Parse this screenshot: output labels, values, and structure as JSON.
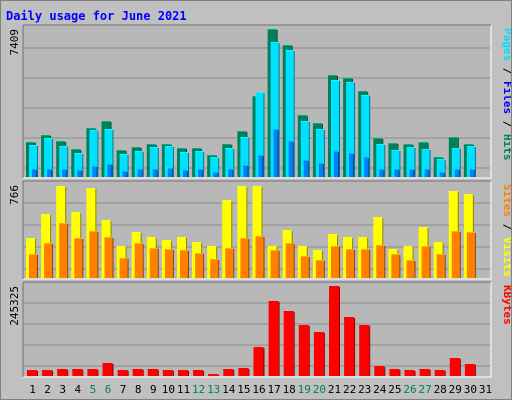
{
  "title": "Daily usage for June 2021",
  "colors": {
    "background": "#c0c0c0",
    "panel": "#b8b8b8",
    "hits": "#00805c",
    "files": "#00e0ff",
    "pages": "#0080ff",
    "visits": "#ffff00",
    "sites": "#ff8000",
    "kbytes": "#ff0000",
    "day_weekday": "#000000",
    "day_weekend": "#00805c"
  },
  "chart_data": [
    {
      "type": "bar",
      "panel": "hits-files-pages",
      "max_label": "7409",
      "legend": [
        {
          "text": "Pages",
          "color": "#00e0ff"
        },
        {
          "text": "Files",
          "color": "#0000ff"
        },
        {
          "text": "Hits",
          "color": "#00805c"
        }
      ],
      "ylim": [
        0,
        7409
      ],
      "categories": [
        "1",
        "2",
        "3",
        "4",
        "5",
        "6",
        "7",
        "8",
        "9",
        "10",
        "11",
        "12",
        "13",
        "14",
        "15",
        "16",
        "17",
        "18",
        "19",
        "20",
        "21",
        "22",
        "23",
        "24",
        "25",
        "26",
        "27",
        "28",
        "29",
        "30",
        "31"
      ],
      "series": [
        {
          "name": "Hits",
          "values": [
            1750,
            2100,
            1800,
            1400,
            2450,
            2800,
            1350,
            1500,
            1650,
            1650,
            1450,
            1450,
            1100,
            1650,
            2300,
            4050,
            7400,
            6600,
            3100,
            2700,
            5100,
            4950,
            4300,
            1950,
            1700,
            1650,
            1750,
            1000,
            2000,
            1650,
            0
          ]
        },
        {
          "name": "Files",
          "values": [
            1600,
            1950,
            1550,
            1200,
            2350,
            2400,
            1150,
            1300,
            1500,
            1550,
            1250,
            1300,
            1000,
            1450,
            2000,
            4250,
            6750,
            6350,
            2800,
            2400,
            4850,
            4750,
            4100,
            1650,
            1350,
            1500,
            1400,
            900,
            1450,
            1550,
            0
          ]
        },
        {
          "name": "Pages",
          "values": [
            380,
            420,
            380,
            330,
            560,
            650,
            320,
            380,
            420,
            430,
            360,
            380,
            260,
            420,
            620,
            1100,
            2400,
            1800,
            850,
            700,
            1300,
            1200,
            1000,
            420,
            380,
            420,
            400,
            260,
            420,
            420,
            0
          ]
        }
      ]
    },
    {
      "type": "bar",
      "panel": "visits-sites",
      "max_label": "766",
      "legend": [
        {
          "text": "Sites",
          "color": "#ff8000"
        },
        {
          "text": "Visits",
          "color": "#ffff00"
        }
      ],
      "ylim": [
        0,
        766
      ],
      "categories": [
        "1",
        "2",
        "3",
        "4",
        "5",
        "6",
        "7",
        "8",
        "9",
        "10",
        "11",
        "12",
        "13",
        "14",
        "15",
        "16",
        "17",
        "18",
        "19",
        "20",
        "21",
        "22",
        "23",
        "24",
        "25",
        "26",
        "27",
        "28",
        "29",
        "30",
        "31"
      ],
      "series": [
        {
          "name": "Visits",
          "values": [
            330,
            530,
            760,
            540,
            745,
            480,
            260,
            380,
            340,
            310,
            340,
            300,
            260,
            640,
            760,
            760,
            260,
            395,
            265,
            230,
            360,
            340,
            340,
            500,
            235,
            260,
            420,
            300,
            720,
            690,
            0
          ]
        },
        {
          "name": "Sites",
          "values": [
            200,
            285,
            455,
            330,
            390,
            335,
            165,
            285,
            250,
            240,
            230,
            210,
            155,
            245,
            330,
            345,
            230,
            290,
            180,
            150,
            260,
            240,
            240,
            275,
            195,
            150,
            260,
            195,
            385,
            375,
            0
          ]
        }
      ]
    },
    {
      "type": "bar",
      "panel": "kbytes",
      "max_label": "245325",
      "legend": [
        {
          "text": "KBytes",
          "color": "#ff0000"
        }
      ],
      "ylim": [
        0,
        245325
      ],
      "categories": [
        "1",
        "2",
        "3",
        "4",
        "5",
        "6",
        "7",
        "8",
        "9",
        "10",
        "11",
        "12",
        "13",
        "14",
        "15",
        "16",
        "17",
        "18",
        "19",
        "20",
        "21",
        "22",
        "23",
        "24",
        "25",
        "26",
        "27",
        "28",
        "29",
        "30",
        "31"
      ],
      "series": [
        {
          "name": "KBytes",
          "values": [
            16500,
            16500,
            20000,
            18500,
            19000,
            36000,
            16500,
            18500,
            18500,
            16500,
            16500,
            16500,
            6500,
            20000,
            23000,
            80000,
            205000,
            177500,
            140000,
            120000,
            245000,
            160000,
            140000,
            26500,
            18500,
            15000,
            20000,
            15000,
            50000,
            33500,
            0
          ]
        }
      ]
    }
  ],
  "day_labels": [
    {
      "text": "1",
      "weekend": false
    },
    {
      "text": "2",
      "weekend": false
    },
    {
      "text": "3",
      "weekend": false
    },
    {
      "text": "4",
      "weekend": false
    },
    {
      "text": "5",
      "weekend": true
    },
    {
      "text": "6",
      "weekend": true
    },
    {
      "text": "7",
      "weekend": false
    },
    {
      "text": "8",
      "weekend": false
    },
    {
      "text": "9",
      "weekend": false
    },
    {
      "text": "10",
      "weekend": false
    },
    {
      "text": "11",
      "weekend": false
    },
    {
      "text": "12",
      "weekend": true
    },
    {
      "text": "13",
      "weekend": true
    },
    {
      "text": "14",
      "weekend": false
    },
    {
      "text": "15",
      "weekend": false
    },
    {
      "text": "16",
      "weekend": false
    },
    {
      "text": "17",
      "weekend": false
    },
    {
      "text": "18",
      "weekend": false
    },
    {
      "text": "19",
      "weekend": true
    },
    {
      "text": "20",
      "weekend": true
    },
    {
      "text": "21",
      "weekend": false
    },
    {
      "text": "22",
      "weekend": false
    },
    {
      "text": "23",
      "weekend": false
    },
    {
      "text": "24",
      "weekend": false
    },
    {
      "text": "25",
      "weekend": false
    },
    {
      "text": "26",
      "weekend": true
    },
    {
      "text": "27",
      "weekend": true
    },
    {
      "text": "28",
      "weekend": false
    },
    {
      "text": "29",
      "weekend": false
    },
    {
      "text": "30",
      "weekend": false
    },
    {
      "text": "31",
      "weekend": false
    }
  ]
}
